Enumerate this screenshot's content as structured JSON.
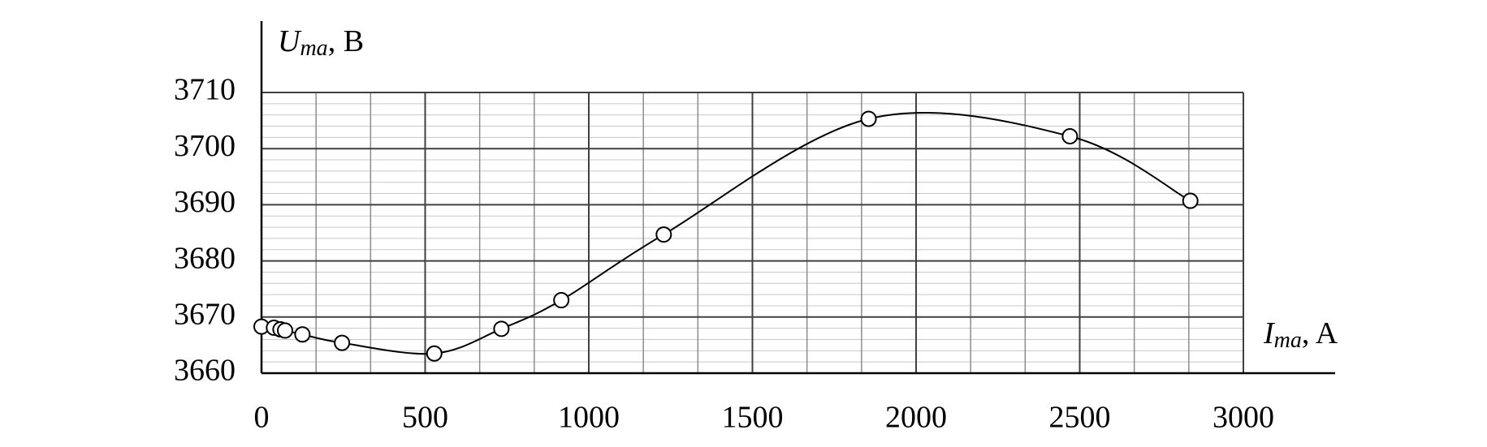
{
  "chart_data": {
    "type": "line",
    "y_label": [
      "U",
      "ma",
      ", B"
    ],
    "x_label": [
      "I",
      "ma",
      ", A"
    ],
    "series": [
      {
        "color": "#000000",
        "x": [
          0,
          38,
          58,
          72,
          125,
          246,
          528,
          733,
          916,
          1229,
          1855,
          2470,
          2838
        ],
        "values": [
          3668.3,
          3668.1,
          3667.8,
          3667.6,
          3666.9,
          3665.4,
          3663.5,
          3667.9,
          3673.0,
          3684.7,
          3705.3,
          3702.2,
          3690.7
        ]
      }
    ],
    "xlim": [
      0,
      3000
    ],
    "xticks": [
      0,
      500,
      1000,
      1500,
      2000,
      2500,
      3000
    ],
    "ylim": [
      3660,
      3710
    ],
    "yticks": [
      3660,
      3670,
      3680,
      3690,
      3700,
      3710
    ],
    "grid": true,
    "x_grid_divisions": 3,
    "y_minor_divisions": 5,
    "smooth": true,
    "markers": true
  }
}
